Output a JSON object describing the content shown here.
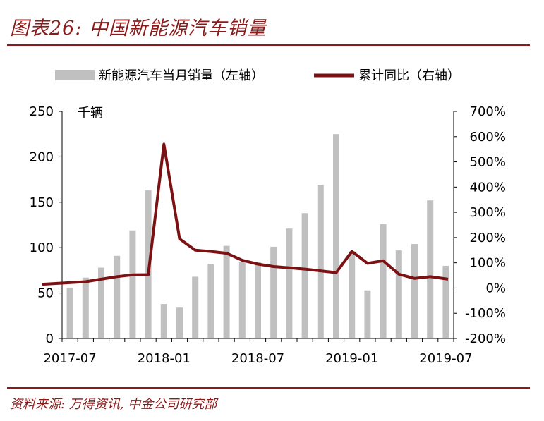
{
  "title": "图表26:  中国新能源汽车销量",
  "source": "资料来源: 万得资讯, 中金公司研究部",
  "colors": {
    "bar": "#C0C0C0",
    "line": "#7B1113",
    "brand": "#8B1A1A"
  },
  "chart_data": {
    "type": "bar+line",
    "left_unit": "千辆",
    "legend": [
      "新能源汽车当月销量（左轴）",
      "累计同比（右轴）"
    ],
    "left_axis": {
      "min": 0,
      "max": 250,
      "ticks": [
        "0",
        "50",
        "100",
        "150",
        "200",
        "250"
      ]
    },
    "right_axis": {
      "min": -200,
      "max": 700,
      "ticks": [
        "-200%",
        "-100%",
        "0%",
        "100%",
        "200%",
        "300%",
        "400%",
        "500%",
        "600%",
        "700%"
      ]
    },
    "x_tick_labels": [
      "2017-07",
      "2018-01",
      "2018-07",
      "2019-01",
      "2019-07"
    ],
    "categories": [
      "2017-07",
      "2017-08",
      "2017-09",
      "2017-10",
      "2017-11",
      "2017-12",
      "2018-01",
      "2018-02",
      "2018-03",
      "2018-04",
      "2018-05",
      "2018-06",
      "2018-07",
      "2018-08",
      "2018-09",
      "2018-10",
      "2018-11",
      "2018-12",
      "2019-01",
      "2019-02",
      "2019-03",
      "2019-04",
      "2019-05",
      "2019-06",
      "2019-07"
    ],
    "series": [
      {
        "name": "新能源汽车当月销量（左轴）",
        "axis": "left",
        "type": "bar",
        "values": [
          56,
          67,
          78,
          91,
          119,
          163,
          38,
          34,
          68,
          82,
          102,
          84,
          84,
          101,
          121,
          138,
          169,
          225,
          96,
          53,
          126,
          97,
          104,
          152,
          80
        ]
      },
      {
        "name": "累计同比（右轴）",
        "axis": "right",
        "type": "line",
        "values": [
          15,
          25,
          35,
          45,
          52,
          53,
          570,
          195,
          150,
          145,
          138,
          110,
          95,
          85,
          80,
          75,
          68,
          61,
          145,
          98,
          108,
          55,
          38,
          45,
          35
        ]
      }
    ]
  }
}
